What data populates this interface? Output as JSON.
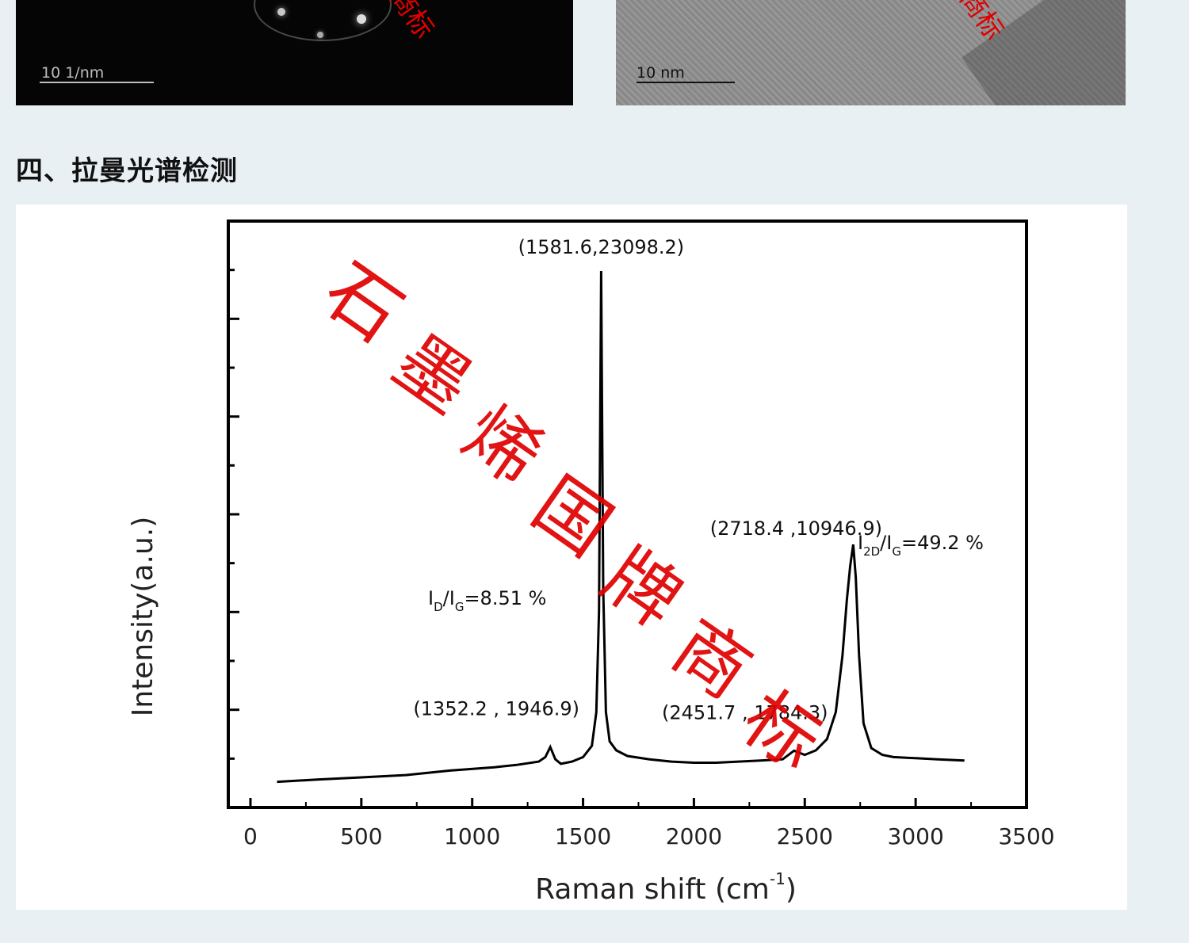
{
  "images": {
    "diffraction": {
      "scale_label": "10 1/nm",
      "stamp": "商标"
    },
    "hrtem": {
      "scale_label": "10 nm",
      "stamp": "商标"
    }
  },
  "section": {
    "heading": "四、拉曼光谱检测"
  },
  "watermark": "石墨烯国牌商标",
  "chart_data": {
    "type": "line",
    "xlabel": "Raman shift (cm",
    "xlabel_sup": "-1",
    "xlabel_close": ")",
    "ylabel": "Intensity(a.u.)",
    "xlim": [
      -100,
      3500
    ],
    "ylim": [
      0,
      25000
    ],
    "xticks": [
      0,
      500,
      1000,
      1500,
      2000,
      2500,
      3000,
      3500
    ],
    "xtick_labels": [
      "0",
      "500",
      "1000",
      "1500",
      "2000",
      "2500",
      "3000",
      "3500"
    ],
    "y_tick_labels_shown": false,
    "peaks": [
      {
        "x": 1352.2,
        "y": 1946.9,
        "label": "(1352.2 , 1946.9)"
      },
      {
        "x": 1581.6,
        "y": 23098.2,
        "label": "(1581.6,23098.2)"
      },
      {
        "x": 2451.7,
        "y": 1784.3,
        "label": "(2451.7 , 1784.3)"
      },
      {
        "x": 2718.4,
        "y": 10946.9,
        "label": "(2718.4 ,10946.9)"
      }
    ],
    "ratios": [
      {
        "main": "I",
        "sub1": "D",
        "mid": "/I",
        "sub2": "G",
        "value": "=8.51 %"
      },
      {
        "main": "I",
        "sub1": "2D",
        "mid": "/I",
        "sub2": "G",
        "value": "=49.2 %"
      }
    ],
    "series": [
      {
        "x": [
          120,
          300,
          500,
          700,
          900,
          1100,
          1200,
          1300,
          1330,
          1352,
          1375,
          1400,
          1450,
          1500,
          1540,
          1560,
          1572,
          1581.6,
          1591,
          1603,
          1620,
          1650,
          1700,
          1800,
          1900,
          2000,
          2100,
          2200,
          2300,
          2400,
          2451.7,
          2500,
          2550,
          2600,
          2640,
          2670,
          2690,
          2705,
          2718.4,
          2730,
          2745,
          2765,
          2800,
          2850,
          2900,
          3000,
          3100,
          3220
        ],
        "y": [
          400,
          500,
          600,
          700,
          900,
          1050,
          1150,
          1300,
          1500,
          1946.9,
          1400,
          1200,
          1300,
          1500,
          2000,
          3500,
          8000,
          23098.2,
          9000,
          3500,
          2200,
          1800,
          1550,
          1400,
          1300,
          1250,
          1250,
          1300,
          1350,
          1400,
          1784.3,
          1600,
          1800,
          2300,
          3500,
          6000,
          8500,
          10000,
          10946.9,
          9500,
          6000,
          3000,
          1900,
          1600,
          1500,
          1450,
          1400,
          1350
        ]
      }
    ]
  }
}
